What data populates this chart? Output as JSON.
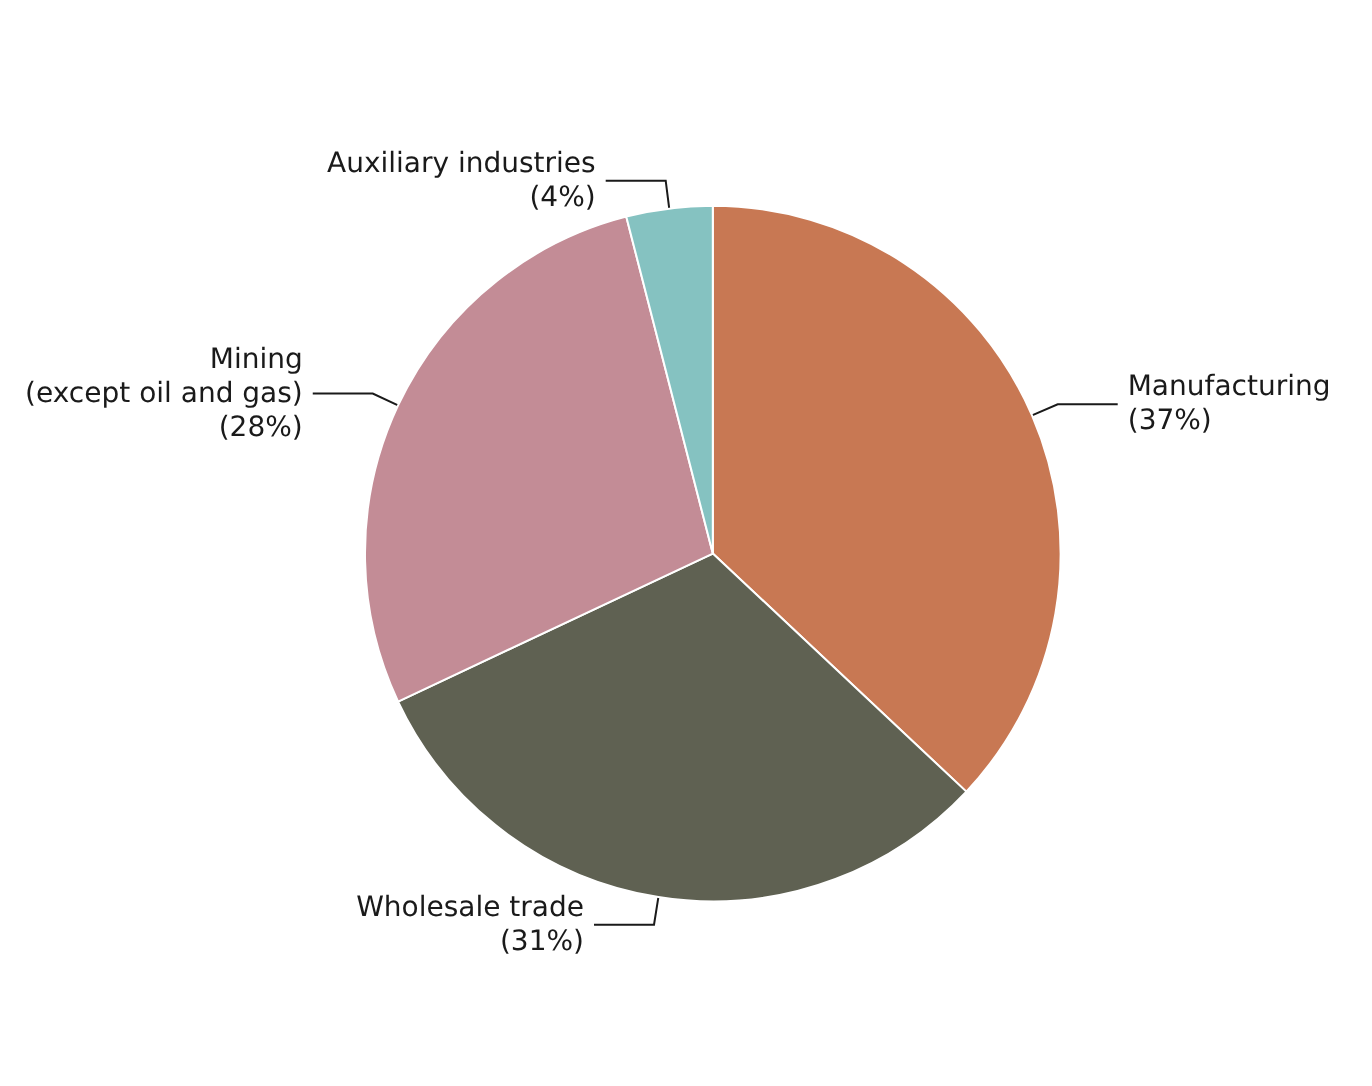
{
  "chart_data": {
    "type": "pie",
    "categories": [
      "Manufacturing",
      "Wholesale trade",
      "Mining\n(except oil and gas)",
      "Auxiliary industries"
    ],
    "values": [
      37,
      31,
      28,
      4
    ],
    "value_labels": [
      "(37%)",
      "(31%)",
      "(28%)",
      "(4%)"
    ],
    "colors": [
      "#c87853",
      "#5f6152",
      "#c38c96",
      "#85c2c1"
    ],
    "legend": false
  }
}
